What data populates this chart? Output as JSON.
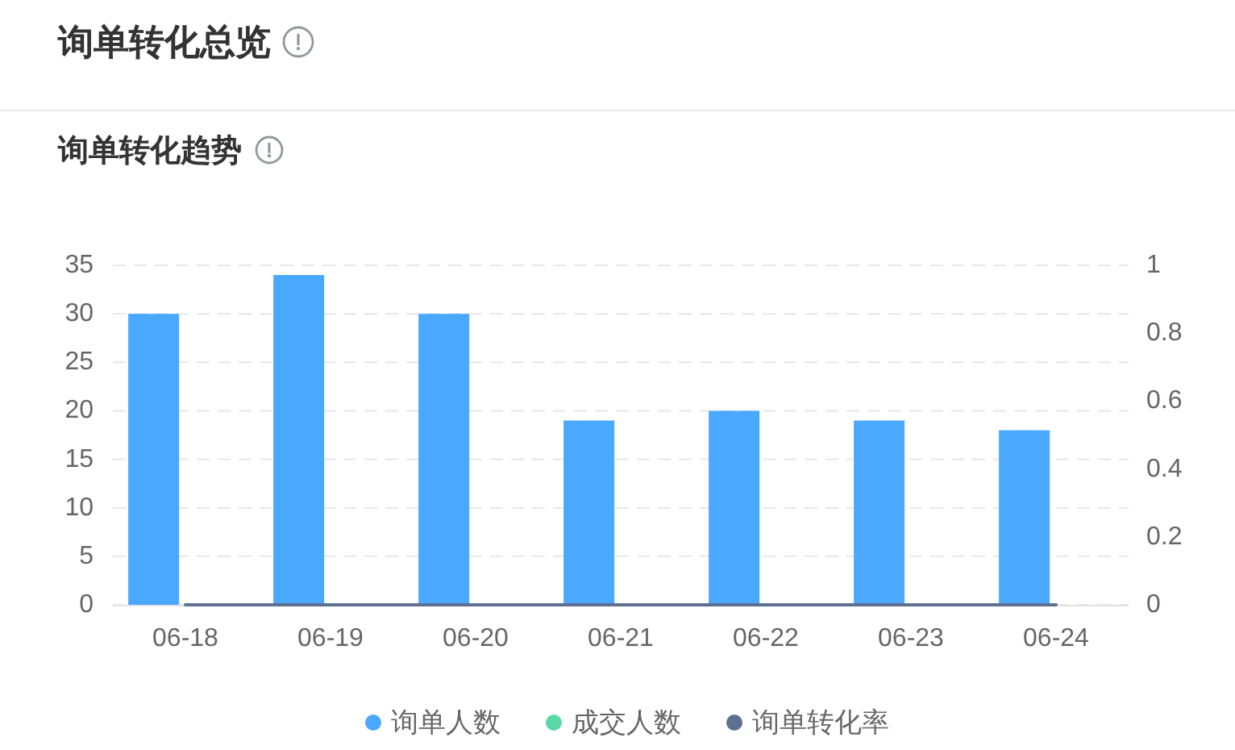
{
  "chart_data": {
    "type": "bar",
    "title": "询单转化总览",
    "subtitle": "询单转化趋势",
    "categories": [
      "06-18",
      "06-19",
      "06-20",
      "06-21",
      "06-22",
      "06-23",
      "06-24"
    ],
    "series": [
      {
        "name": "询单人数",
        "color": "#4ba8ff",
        "values": [
          30,
          34,
          30,
          19,
          20,
          19,
          18
        ]
      },
      {
        "name": "成交人数",
        "color": "#5ad8a6",
        "values": [
          0,
          0,
          0,
          0,
          0,
          0,
          0
        ]
      },
      {
        "name": "询单转化率",
        "type": "line",
        "axis": "y2",
        "color": "#5d7092",
        "values": [
          0,
          0,
          0,
          0,
          0,
          0,
          0
        ]
      }
    ],
    "ylim": [
      0,
      35
    ],
    "yticks": [
      0,
      5,
      10,
      15,
      20,
      25,
      30,
      35
    ],
    "y2lim": [
      0,
      1
    ],
    "y2ticks": [
      0,
      0.2,
      0.4,
      0.6,
      0.8,
      1
    ],
    "grid": "y",
    "legend": "bottom"
  }
}
